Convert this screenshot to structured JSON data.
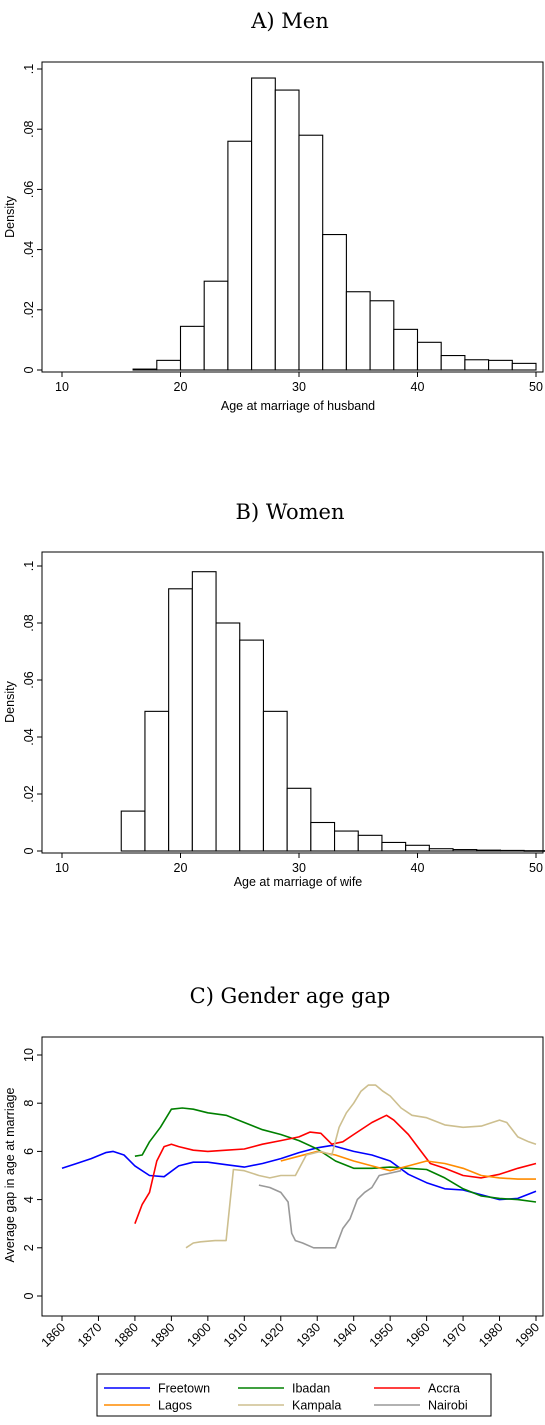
{
  "chart_data": [
    {
      "type": "bar",
      "title": "A) Men",
      "xlabel": "Age at marriage of husband",
      "ylabel": "Density",
      "xlim": [
        10,
        50
      ],
      "ylim": [
        0,
        0.1
      ],
      "xticks": [
        10,
        20,
        30,
        40,
        50
      ],
      "xtick_labels": [
        "10",
        "20",
        "30",
        "40",
        "50"
      ],
      "yticks": [
        0,
        0.02,
        0.04,
        0.06,
        0.08,
        0.1
      ],
      "ytick_labels": [
        "0",
        ".02",
        ".04",
        ".06",
        ".08",
        ".1"
      ],
      "grid": false,
      "bin_width": 2,
      "bin_starts": [
        16,
        18,
        20,
        22,
        24,
        26,
        28,
        30,
        32,
        34,
        36,
        38,
        40,
        42,
        44,
        46,
        48
      ],
      "values": [
        0.0003,
        0.0032,
        0.0145,
        0.0295,
        0.076,
        0.097,
        0.093,
        0.078,
        0.045,
        0.026,
        0.023,
        0.0135,
        0.0092,
        0.0048,
        0.0034,
        0.0032,
        0.0022
      ]
    },
    {
      "type": "bar",
      "title": "B) Women",
      "xlabel": "Age at marriage of wife",
      "ylabel": "Density",
      "xlim": [
        10,
        50
      ],
      "ylim": [
        0,
        0.1
      ],
      "xticks": [
        10,
        20,
        30,
        40,
        50
      ],
      "xtick_labels": [
        "10",
        "20",
        "30",
        "40",
        "50"
      ],
      "yticks": [
        0,
        0.02,
        0.04,
        0.06,
        0.08,
        0.1
      ],
      "ytick_labels": [
        "0",
        ".02",
        ".04",
        ".06",
        ".08",
        ".1"
      ],
      "grid": false,
      "bin_width": 2,
      "bin_starts": [
        15,
        17,
        19,
        21,
        23,
        25,
        27,
        29,
        31,
        33,
        35,
        37,
        39,
        41,
        43,
        45,
        47,
        49
      ],
      "values": [
        0.014,
        0.049,
        0.092,
        0.098,
        0.08,
        0.074,
        0.049,
        0.022,
        0.01,
        0.007,
        0.0055,
        0.003,
        0.002,
        0.0008,
        0.0005,
        0.0003,
        0.0002,
        0.0001
      ]
    },
    {
      "type": "line",
      "title": "C) Gender age gap",
      "xlabel": "",
      "ylabel": "Average gap in age at marriage",
      "xlim": [
        1860,
        1990
      ],
      "ylim": [
        0,
        10
      ],
      "xticks": [
        1860,
        1870,
        1880,
        1890,
        1900,
        1910,
        1920,
        1930,
        1940,
        1950,
        1960,
        1970,
        1980,
        1990
      ],
      "xtick_labels": [
        "1860",
        "1870",
        "1880",
        "1890",
        "1900",
        "1910",
        "1920",
        "1930",
        "1940",
        "1950",
        "1960",
        "1970",
        "1980",
        "1990"
      ],
      "yticks": [
        0,
        2,
        4,
        6,
        8,
        10
      ],
      "ytick_labels": [
        "0",
        "2",
        "4",
        "6",
        "8",
        "10"
      ],
      "grid": false,
      "legend_position": "bottom",
      "series": [
        {
          "name": "Freetown",
          "color": "#0000ff",
          "x": [
            1860,
            1864,
            1868,
            1872,
            1874,
            1877,
            1880,
            1884,
            1888,
            1892,
            1896,
            1900,
            1905,
            1910,
            1915,
            1920,
            1925,
            1930,
            1934,
            1940,
            1945,
            1950,
            1955,
            1960,
            1965,
            1970,
            1975,
            1980,
            1985,
            1990
          ],
          "y": [
            5.3,
            5.5,
            5.7,
            5.95,
            6.0,
            5.85,
            5.4,
            5.0,
            4.95,
            5.4,
            5.55,
            5.55,
            5.45,
            5.35,
            5.5,
            5.7,
            5.95,
            6.15,
            6.25,
            6.0,
            5.85,
            5.6,
            5.05,
            4.7,
            4.45,
            4.4,
            4.2,
            4.0,
            4.05,
            4.35
          ]
        },
        {
          "name": "Ibadan",
          "color": "#008000",
          "x": [
            1880,
            1882,
            1884,
            1887,
            1890,
            1893,
            1896,
            1900,
            1905,
            1910,
            1915,
            1920,
            1925,
            1930,
            1935,
            1940,
            1945,
            1950,
            1955,
            1960,
            1965,
            1970,
            1975,
            1980,
            1985,
            1990
          ],
          "y": [
            5.8,
            5.85,
            6.4,
            7.0,
            7.75,
            7.8,
            7.75,
            7.6,
            7.5,
            7.2,
            6.9,
            6.7,
            6.45,
            6.1,
            5.6,
            5.3,
            5.3,
            5.35,
            5.3,
            5.25,
            4.9,
            4.45,
            4.15,
            4.05,
            4.0,
            3.9
          ]
        },
        {
          "name": "Accra",
          "color": "#ff0000",
          "x": [
            1880,
            1882,
            1884,
            1886,
            1888,
            1890,
            1892,
            1896,
            1900,
            1905,
            1910,
            1915,
            1920,
            1925,
            1928,
            1931,
            1934,
            1937,
            1940,
            1945,
            1949,
            1951,
            1955,
            1958,
            1961,
            1965,
            1970,
            1975,
            1980,
            1985,
            1990
          ],
          "y": [
            3.0,
            3.8,
            4.3,
            5.6,
            6.2,
            6.3,
            6.2,
            6.05,
            6.0,
            6.05,
            6.1,
            6.3,
            6.45,
            6.6,
            6.8,
            6.75,
            6.3,
            6.4,
            6.7,
            7.2,
            7.5,
            7.3,
            6.7,
            6.1,
            5.5,
            5.3,
            5.0,
            4.9,
            5.05,
            5.3,
            5.5
          ]
        },
        {
          "name": "Lagos",
          "color": "#ff8c00",
          "x": [
            1920,
            1925,
            1930,
            1935,
            1940,
            1945,
            1950,
            1955,
            1960,
            1965,
            1970,
            1975,
            1980,
            1985,
            1990
          ],
          "y": [
            5.6,
            5.8,
            6.0,
            5.85,
            5.6,
            5.4,
            5.2,
            5.4,
            5.6,
            5.5,
            5.3,
            5.0,
            4.9,
            4.85,
            4.85
          ]
        },
        {
          "name": "Kampala",
          "color": "#cdbf8f",
          "x": [
            1894,
            1896,
            1898,
            1902,
            1905,
            1907,
            1910,
            1914,
            1917,
            1920,
            1924,
            1927,
            1931,
            1934,
            1936,
            1938,
            1940,
            1942,
            1944,
            1946,
            1948,
            1950,
            1953,
            1956,
            1960,
            1965,
            1970,
            1975,
            1978,
            1980,
            1982,
            1985,
            1988,
            1990
          ],
          "y": [
            2.0,
            2.2,
            2.25,
            2.3,
            2.3,
            5.25,
            5.2,
            5.0,
            4.9,
            5.0,
            5.0,
            5.85,
            6.0,
            5.85,
            7.0,
            7.6,
            8.0,
            8.5,
            8.75,
            8.75,
            8.5,
            8.3,
            7.8,
            7.5,
            7.4,
            7.1,
            7.0,
            7.05,
            7.2,
            7.3,
            7.2,
            6.6,
            6.4,
            6.3
          ]
        },
        {
          "name": "Nairobi",
          "color": "#999999",
          "x": [
            1914,
            1917,
            1920,
            1922,
            1923,
            1924,
            1926,
            1929,
            1933,
            1935,
            1937,
            1939,
            1941,
            1943,
            1945,
            1947,
            1950,
            1953
          ],
          "y": [
            4.6,
            4.5,
            4.3,
            3.9,
            2.6,
            2.3,
            2.2,
            2.0,
            2.0,
            2.0,
            2.8,
            3.2,
            4.0,
            4.3,
            4.5,
            5.0,
            5.1,
            5.2
          ]
        }
      ]
    }
  ]
}
